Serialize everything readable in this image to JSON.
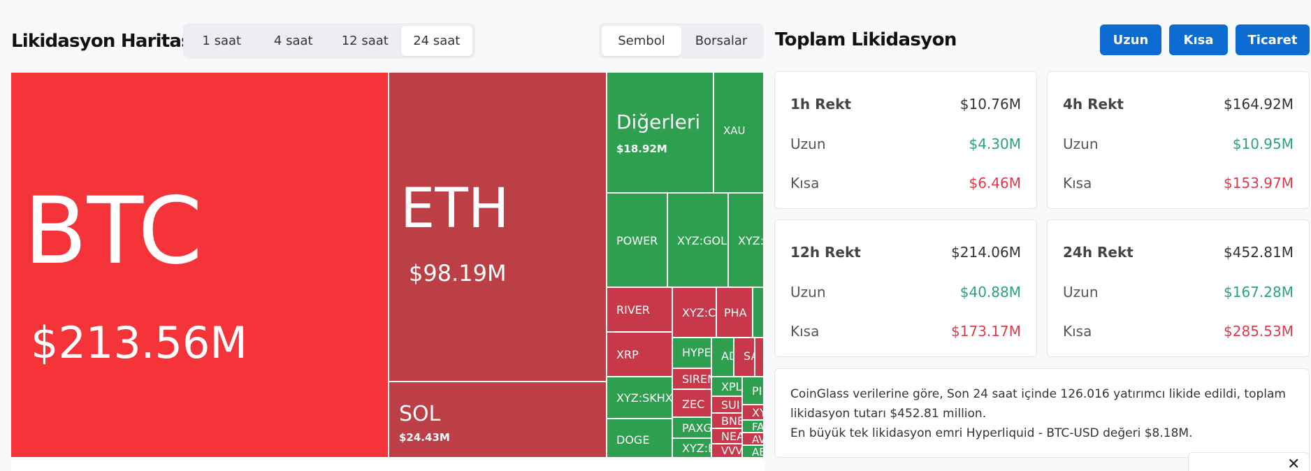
{
  "header": {
    "map_title": "Likidasyon Haritası",
    "time_tabs": [
      "1 saat",
      "4 saat",
      "12 saat",
      "24 saat"
    ],
    "active_time_tab": "24 saat",
    "view_tabs": [
      "Sembol",
      "Borsalar"
    ],
    "active_view_tab": "Sembol"
  },
  "treemap": {
    "tiles": [
      {
        "name": "BTC",
        "value": "$213.56M"
      },
      {
        "name": "ETH",
        "value": "$98.19M"
      },
      {
        "name": "SOL",
        "value": "$24.43M"
      },
      {
        "name": "Diğerleri",
        "value": "$18.92M"
      },
      {
        "name": "XAU"
      },
      {
        "name": "POWER"
      },
      {
        "name": "XYZ:GOLD"
      },
      {
        "name": "XYZ:S"
      },
      {
        "name": "RIVER"
      },
      {
        "name": "XYZ:C"
      },
      {
        "name": "PHA"
      },
      {
        "name": "XRP"
      },
      {
        "name": "HYPE"
      },
      {
        "name": "AD"
      },
      {
        "name": "SA"
      },
      {
        "name": "XYZ:SKHX"
      },
      {
        "name": "SIREN"
      },
      {
        "name": "XPL"
      },
      {
        "name": "PI"
      },
      {
        "name": "ZEC"
      },
      {
        "name": "SUI"
      },
      {
        "name": "XY"
      },
      {
        "name": "BNB"
      },
      {
        "name": "FA"
      },
      {
        "name": "DOGE"
      },
      {
        "name": "PAXG"
      },
      {
        "name": "NEA"
      },
      {
        "name": "AV"
      },
      {
        "name": "XYZ:E"
      },
      {
        "name": "VVV"
      },
      {
        "name": "AE"
      }
    ]
  },
  "summary": {
    "title": "Toplam Likidasyon",
    "buttons": [
      "Uzun",
      "Kısa",
      "Ticaret"
    ],
    "cards": [
      {
        "label": "1h Rekt",
        "total": "$10.76M",
        "long_label": "Uzun",
        "long": "$4.30M",
        "short_label": "Kısa",
        "short": "$6.46M"
      },
      {
        "label": "4h Rekt",
        "total": "$164.92M",
        "long_label": "Uzun",
        "long": "$10.95M",
        "short_label": "Kısa",
        "short": "$153.97M"
      },
      {
        "label": "12h Rekt",
        "total": "$214.06M",
        "long_label": "Uzun",
        "long": "$40.88M",
        "short_label": "Kısa",
        "short": "$173.17M"
      },
      {
        "label": "24h Rekt",
        "total": "$452.81M",
        "long_label": "Uzun",
        "long": "$167.28M",
        "short_label": "Kısa",
        "short": "$285.53M"
      }
    ],
    "info_lines": [
      "CoinGlass verilerine göre, Son 24 saat içinde 126.016 yatırımcı likide edildi, toplam",
      "likidasyon tutarı $452.81 million.",
      "En büyük tek likidasyon emri Hyperliquid - BTC-USD değeri $8.18M."
    ]
  },
  "colors": {
    "btc_red": "#f5343a",
    "dark_red": "#bd3f46",
    "green": "#2e9e4f",
    "button_blue": "#0b6bd0",
    "positive_text": "#2aa37a",
    "negative_text": "#e0394b"
  },
  "icons": {
    "close": "close-icon"
  }
}
